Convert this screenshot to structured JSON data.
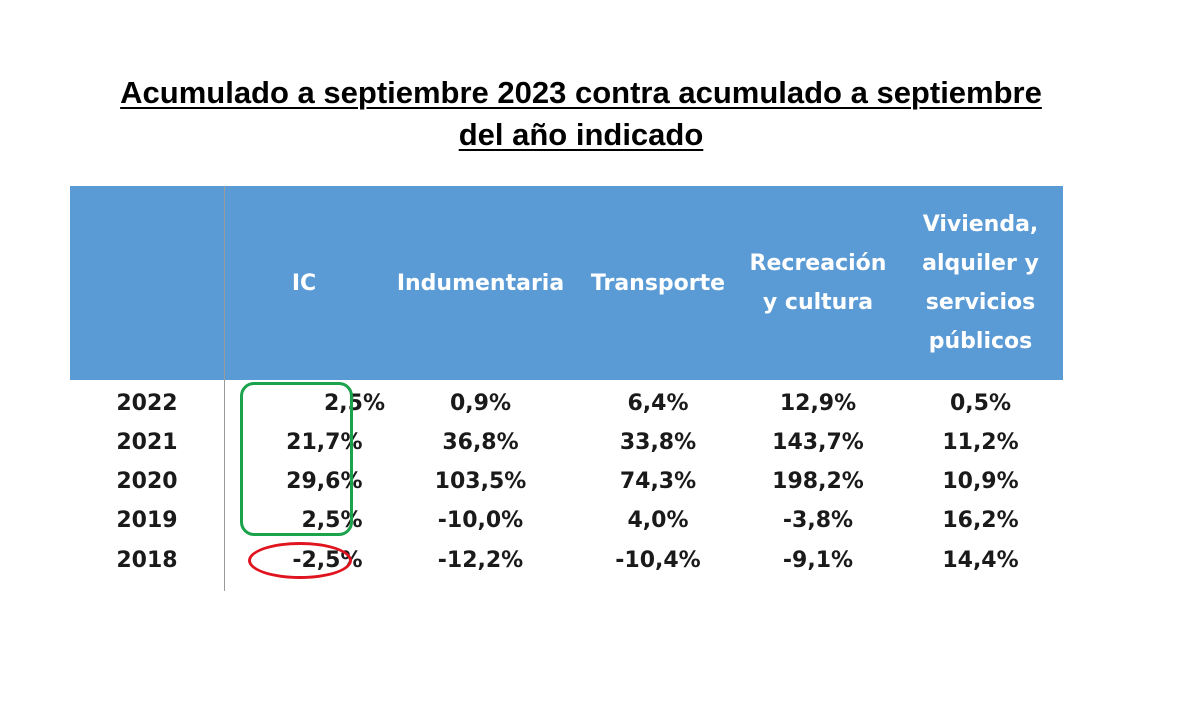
{
  "title": {
    "line1": "Acumulado a septiembre 2023 contra acumulado a septiembre",
    "line2": "del año indicado"
  },
  "table": {
    "columns": [
      "",
      "IC",
      "Indumentaria",
      "Transporte",
      "Recreación y cultura",
      "Vivienda, alquiler y servicios públicos"
    ],
    "column_lines": {
      "recreacion": [
        "Recreación",
        "y cultura"
      ],
      "vivienda": [
        "Vivienda,",
        "alquiler y",
        "servicios",
        "públicos"
      ]
    },
    "rows": [
      {
        "year": "2022",
        "values": [
          "2,5%",
          "0,9%",
          "6,4%",
          "12,9%",
          "0,5%"
        ]
      },
      {
        "year": "2021",
        "values": [
          "21,7%",
          "36,8%",
          "33,8%",
          "143,7%",
          "11,2%"
        ]
      },
      {
        "year": "2020",
        "values": [
          "29,6%",
          "103,5%",
          "74,3%",
          "198,2%",
          "10,9%"
        ]
      },
      {
        "year": "2019",
        "values": [
          "2,5%",
          "-10,0%",
          "4,0%",
          "-3,8%",
          "16,2%"
        ]
      },
      {
        "year": "2018",
        "values": [
          "-2,5%",
          "-12,2%",
          "-10,4%",
          "-9,1%",
          "14,4%"
        ]
      }
    ]
  },
  "colors": {
    "header_background": "#5b9bd5",
    "header_text": "#ffffff",
    "highlight_green": "#1aa34a",
    "highlight_red": "#e0141e"
  }
}
